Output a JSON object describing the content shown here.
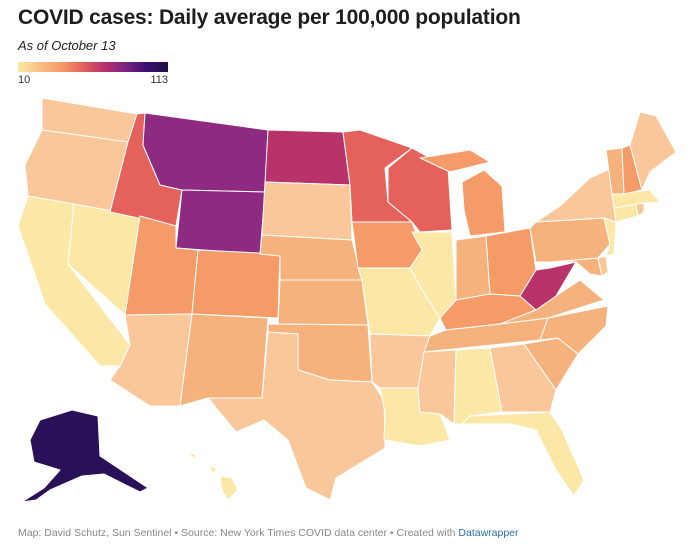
{
  "title": "COVID cases: Daily average per 100,000 population",
  "subtitle": "As of October 13",
  "legend": {
    "min_label": "10",
    "max_label": "113"
  },
  "colors": {
    "c1": "#fbe8a6",
    "c2": "#f9c79a",
    "c3": "#f6b27c",
    "c4": "#f59b68",
    "c5": "#e5625c",
    "c6": "#b8336a",
    "c7": "#8f2a82",
    "c8": "#2a1058"
  },
  "footer": {
    "text": "Map: David Schutz, Sun Sentinel • Source: New York Times COVID data center • Created with",
    "link_label": "Datawrapper"
  },
  "states": [
    {
      "name": "Washington",
      "level": "c2"
    },
    {
      "name": "Oregon",
      "level": "c2"
    },
    {
      "name": "California",
      "level": "c1"
    },
    {
      "name": "Nevada",
      "level": "c1"
    },
    {
      "name": "Idaho",
      "level": "c5"
    },
    {
      "name": "Montana",
      "level": "c7"
    },
    {
      "name": "Wyoming",
      "level": "c7"
    },
    {
      "name": "Utah",
      "level": "c4"
    },
    {
      "name": "Arizona",
      "level": "c2"
    },
    {
      "name": "Colorado",
      "level": "c4"
    },
    {
      "name": "New Mexico",
      "level": "c3"
    },
    {
      "name": "North Dakota",
      "level": "c6"
    },
    {
      "name": "South Dakota",
      "level": "c2"
    },
    {
      "name": "Nebraska",
      "level": "c3"
    },
    {
      "name": "Kansas",
      "level": "c3"
    },
    {
      "name": "Oklahoma",
      "level": "c3"
    },
    {
      "name": "Texas",
      "level": "c2"
    },
    {
      "name": "Minnesota",
      "level": "c5"
    },
    {
      "name": "Iowa",
      "level": "c4"
    },
    {
      "name": "Missouri",
      "level": "c1"
    },
    {
      "name": "Arkansas",
      "level": "c2"
    },
    {
      "name": "Louisiana",
      "level": "c1"
    },
    {
      "name": "Wisconsin",
      "level": "c5"
    },
    {
      "name": "Illinois",
      "level": "c1"
    },
    {
      "name": "Michigan",
      "level": "c4"
    },
    {
      "name": "Indiana",
      "level": "c3"
    },
    {
      "name": "Ohio",
      "level": "c4"
    },
    {
      "name": "Kentucky",
      "level": "c4"
    },
    {
      "name": "Tennessee",
      "level": "c3"
    },
    {
      "name": "Mississippi",
      "level": "c2"
    },
    {
      "name": "Alabama",
      "level": "c1"
    },
    {
      "name": "Georgia",
      "level": "c2"
    },
    {
      "name": "Florida",
      "level": "c1"
    },
    {
      "name": "South Carolina",
      "level": "c3"
    },
    {
      "name": "North Carolina",
      "level": "c3"
    },
    {
      "name": "Virginia",
      "level": "c3"
    },
    {
      "name": "West Virginia",
      "level": "c6"
    },
    {
      "name": "Maryland",
      "level": "c3"
    },
    {
      "name": "Delaware",
      "level": "c2"
    },
    {
      "name": "Pennsylvania",
      "level": "c3"
    },
    {
      "name": "New Jersey",
      "level": "c1"
    },
    {
      "name": "New York",
      "level": "c2"
    },
    {
      "name": "Connecticut",
      "level": "c1"
    },
    {
      "name": "Rhode Island",
      "level": "c2"
    },
    {
      "name": "Massachusetts",
      "level": "c1"
    },
    {
      "name": "Vermont",
      "level": "c3"
    },
    {
      "name": "New Hampshire",
      "level": "c4"
    },
    {
      "name": "Maine",
      "level": "c2"
    },
    {
      "name": "Alaska",
      "level": "c8"
    },
    {
      "name": "Hawaii",
      "level": "c1"
    }
  ]
}
